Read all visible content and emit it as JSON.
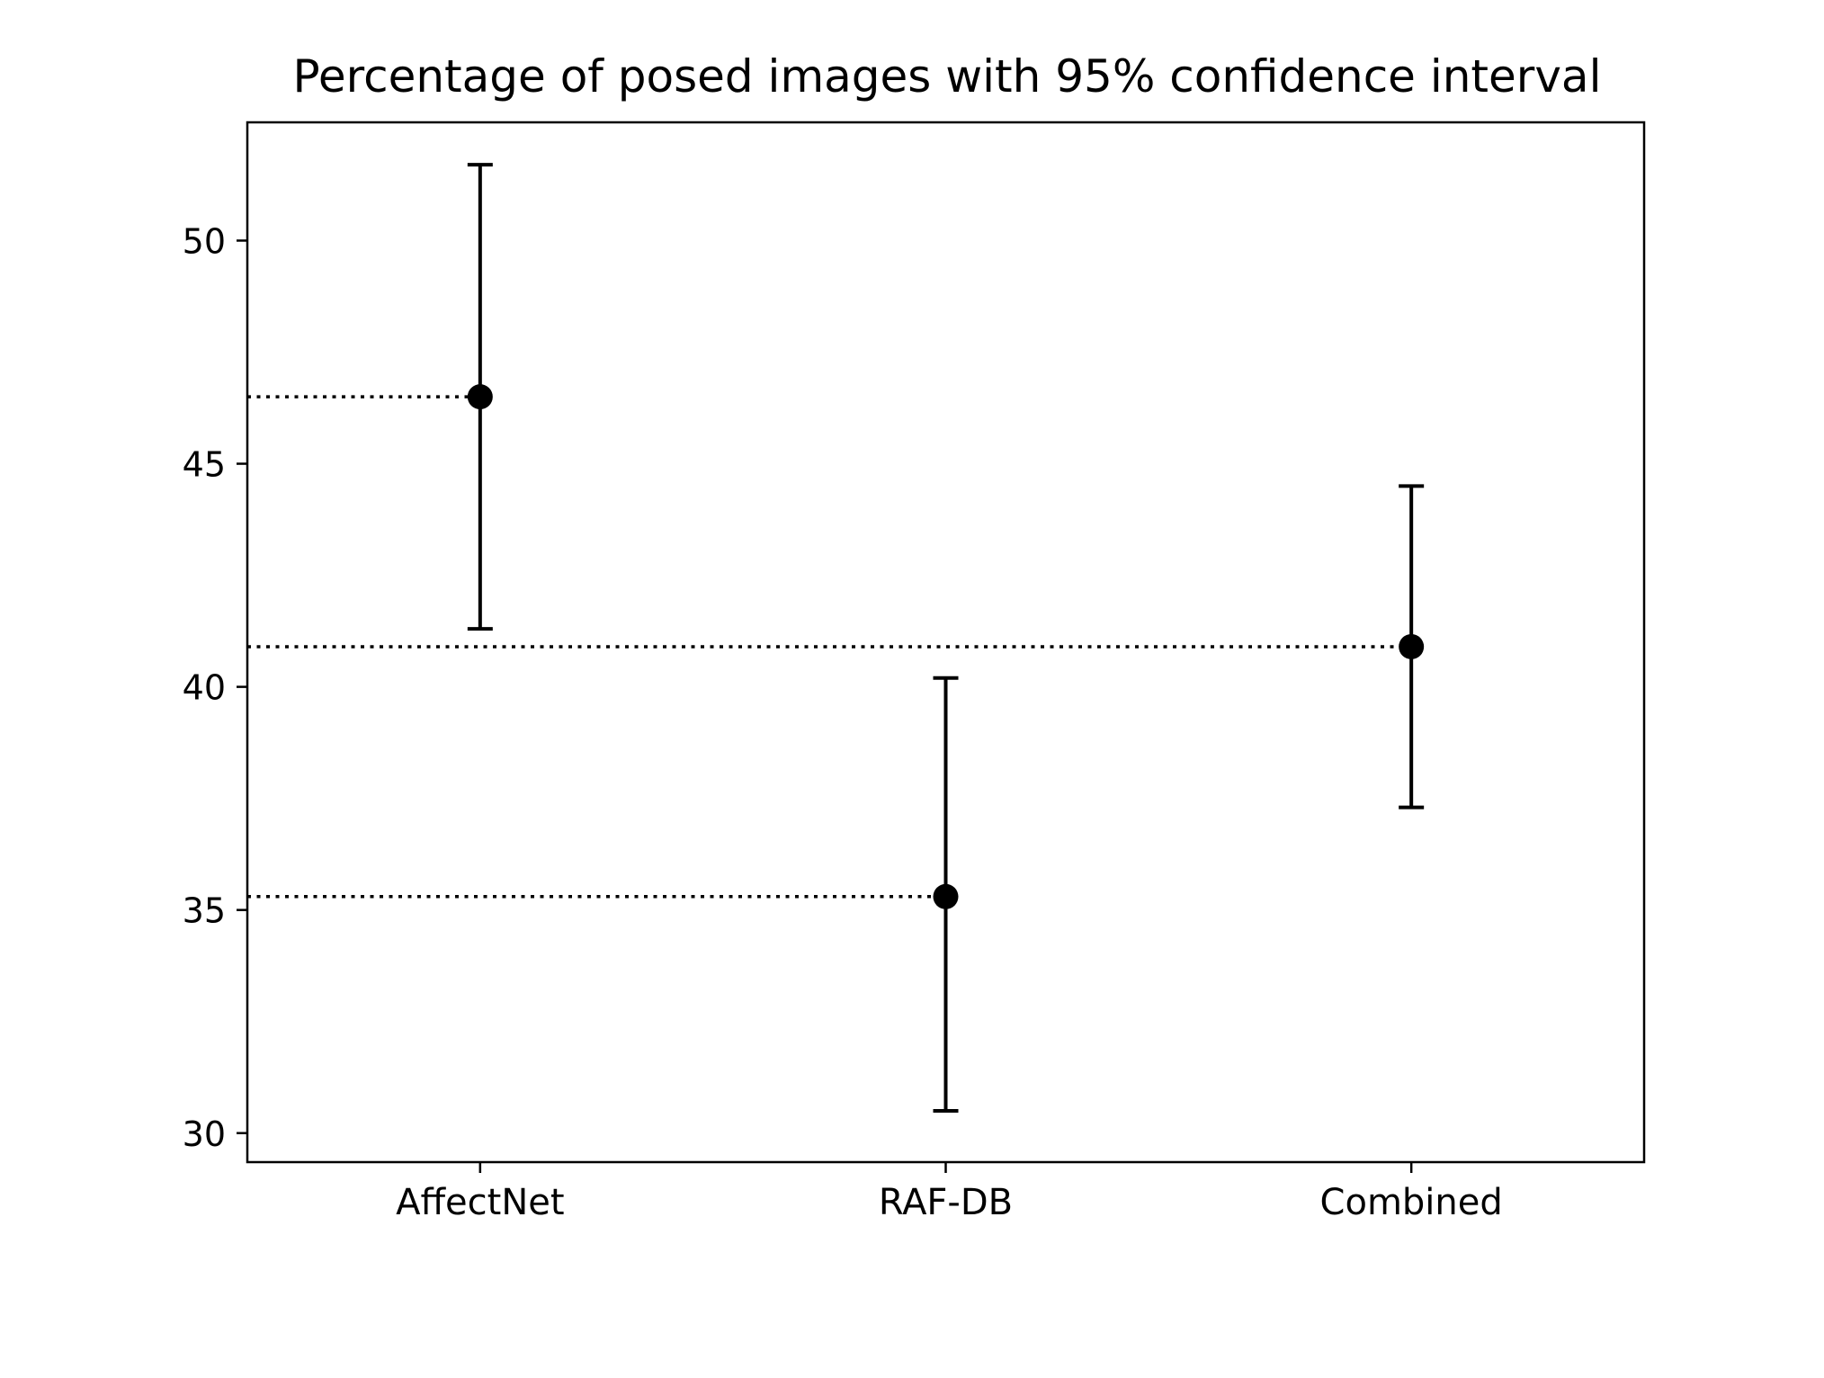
{
  "chart_data": {
    "type": "errorbar",
    "title": "Percentage of posed images with 95% confidence interval",
    "xlabel": "",
    "ylabel": "",
    "categories": [
      "AffectNet",
      "RAF-DB",
      "Combined"
    ],
    "points": [
      {
        "label": "AffectNet",
        "value": 46.5,
        "ci_low": 41.3,
        "ci_high": 51.7
      },
      {
        "label": "RAF-DB",
        "value": 35.3,
        "ci_low": 30.5,
        "ci_high": 40.2
      },
      {
        "label": "Combined",
        "value": 40.9,
        "ci_low": 37.3,
        "ci_high": 44.5
      }
    ],
    "reference_lines": [
      {
        "for": "AffectNet",
        "value": 46.5,
        "style": "dotted"
      },
      {
        "for": "RAF-DB",
        "value": 35.3,
        "style": "dotted"
      },
      {
        "for": "Combined",
        "value": 40.9,
        "style": "dotted"
      }
    ],
    "y_ticks": [
      30,
      35,
      40,
      45,
      50
    ],
    "ylim": [
      29.35,
      52.65
    ],
    "grid": false,
    "colors": {
      "marker": "#000000",
      "line": "#000000",
      "axes": "#000000",
      "background": "#ffffff"
    }
  }
}
